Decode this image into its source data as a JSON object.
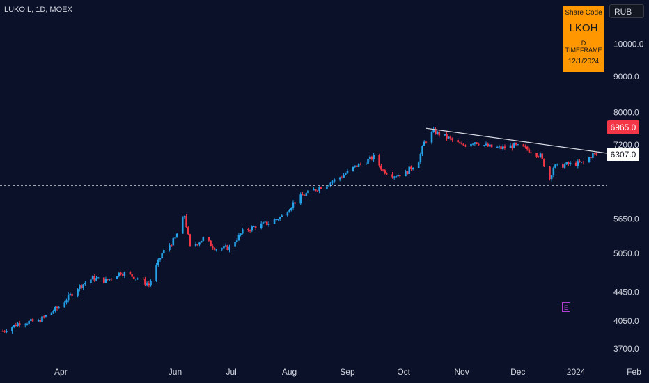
{
  "header": {
    "symbol_line": "LUKOIL, 1D, MOEX",
    "currency": "RUB"
  },
  "info_box": {
    "label": "Share Code",
    "code": "LKOH",
    "timeframe": "D TIMEFRAME",
    "date": "12/1/2024"
  },
  "earnings_marker": "E",
  "colors": {
    "background": "#0b1129",
    "up": "#26a0e6",
    "down": "#f23645",
    "axis_text": "#d1d4dc",
    "info_box": "#ff9800"
  },
  "chart_data": {
    "type": "candlestick",
    "y_scale": "log",
    "ylim": [
      3350,
      11500
    ],
    "yticks": [
      10000,
      9000,
      8000,
      7200,
      5650,
      5050,
      4450,
      4050,
      3700
    ],
    "ytick_labels": [
      "10000.0",
      "9000.0",
      "8000.0",
      "7200.0",
      "5650.0",
      "5050.0",
      "4450.0",
      "4050.0",
      "3700.0"
    ],
    "x_labels": [
      "Apr",
      "Jun",
      "Jul",
      "Aug",
      "Sep",
      "Oct",
      "Nov",
      "Dec",
      "2024",
      "Feb"
    ],
    "x_label_dates": [
      "2023-04-01",
      "2023-06-01",
      "2023-07-01",
      "2023-08-01",
      "2023-09-01",
      "2023-10-01",
      "2023-11-01",
      "2023-12-01",
      "2024-01-01",
      "2024-02-01"
    ],
    "last_price": 6965,
    "last_price_label": "6965.0",
    "horizontal_level": 6307,
    "horizontal_level_label": "6307.0",
    "trendline": {
      "start": [
        "2023-10-13",
        7600
      ],
      "end": [
        "2024-01-22",
        6980
      ]
    },
    "close_path": [
      [
        "2023-03-01",
        3920
      ],
      [
        "2023-03-10",
        4030
      ],
      [
        "2023-03-20",
        4050
      ],
      [
        "2023-03-31",
        4240
      ],
      [
        "2023-04-10",
        4520
      ],
      [
        "2023-04-18",
        4660
      ],
      [
        "2023-04-25",
        4620
      ],
      [
        "2023-05-03",
        4750
      ],
      [
        "2023-05-12",
        4660
      ],
      [
        "2023-05-18",
        4560
      ],
      [
        "2023-05-25",
        5050
      ],
      [
        "2023-06-01",
        5300
      ],
      [
        "2023-06-06",
        5720
      ],
      [
        "2023-06-09",
        5150
      ],
      [
        "2023-06-16",
        5300
      ],
      [
        "2023-06-23",
        5130
      ],
      [
        "2023-06-30",
        5150
      ],
      [
        "2023-07-07",
        5420
      ],
      [
        "2023-07-14",
        5520
      ],
      [
        "2023-07-21",
        5580
      ],
      [
        "2023-07-28",
        5700
      ],
      [
        "2023-08-03",
        5950
      ],
      [
        "2023-08-08",
        6100
      ],
      [
        "2023-08-15",
        6230
      ],
      [
        "2023-08-22",
        6350
      ],
      [
        "2023-08-29",
        6500
      ],
      [
        "2023-09-05",
        6700
      ],
      [
        "2023-09-12",
        6850
      ],
      [
        "2023-09-15",
        6920
      ],
      [
        "2023-09-20",
        6620
      ],
      [
        "2023-09-26",
        6520
      ],
      [
        "2023-10-02",
        6560
      ],
      [
        "2023-10-09",
        6850
      ],
      [
        "2023-10-12",
        7250
      ],
      [
        "2023-10-17",
        7520
      ],
      [
        "2023-10-24",
        7380
      ],
      [
        "2023-11-01",
        7180
      ],
      [
        "2023-11-08",
        7280
      ],
      [
        "2023-11-15",
        7160
      ],
      [
        "2023-11-22",
        7120
      ],
      [
        "2023-11-29",
        7180
      ],
      [
        "2023-12-06",
        7100
      ],
      [
        "2023-12-13",
        6950
      ],
      [
        "2023-12-18",
        6450
      ],
      [
        "2023-12-20",
        6700
      ],
      [
        "2023-12-27",
        6750
      ],
      [
        "2024-01-05",
        6790
      ],
      [
        "2024-01-10",
        6980
      ],
      [
        "2024-01-12",
        6965
      ]
    ]
  }
}
